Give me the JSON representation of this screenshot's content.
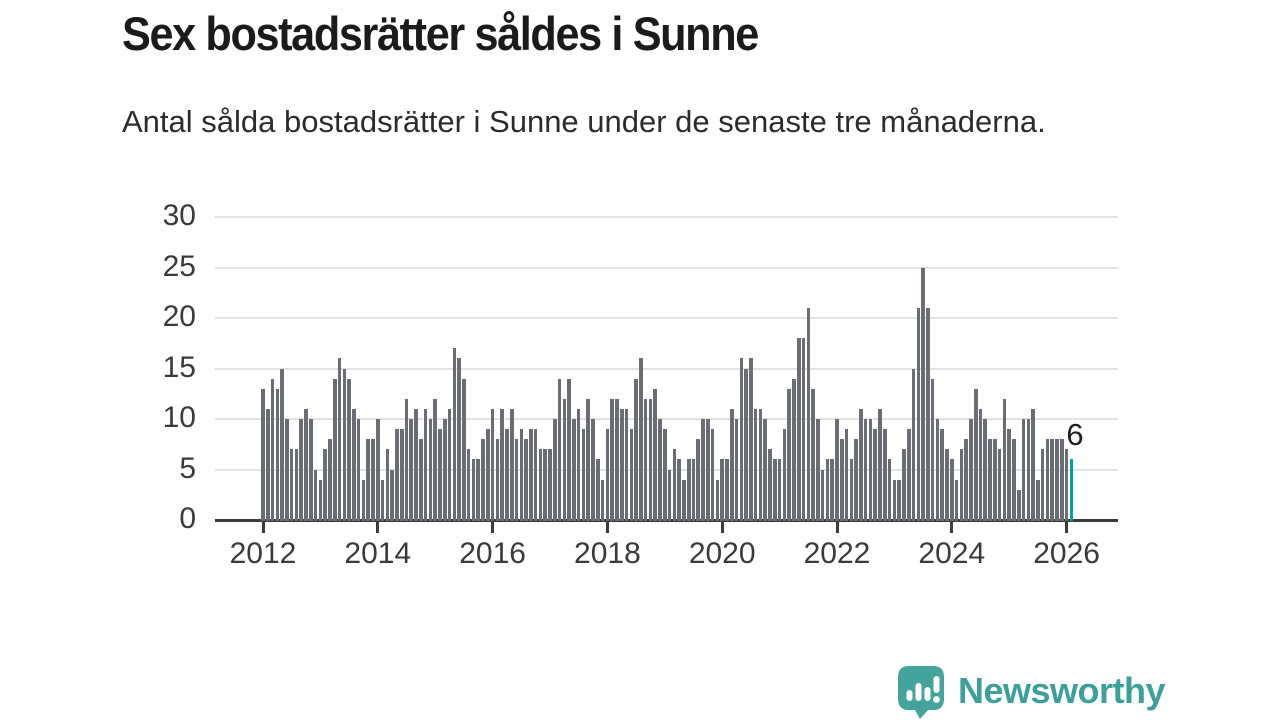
{
  "header": {
    "title": "Sex bostadsrätter såldes i Sunne",
    "subtitle": "Antal sålda bostadsrätter i Sunne under de senaste tre månaderna."
  },
  "chart_data": {
    "type": "bar",
    "title": "Sex bostadsrätter såldes i Sunne",
    "subtitle": "Antal sålda bostadsrätter i Sunne under de senaste tre månaderna.",
    "frequency": "monthly",
    "start_month": "2012-01",
    "end_month": "2026-02",
    "values": [
      13,
      11,
      14,
      13,
      15,
      10,
      7,
      7,
      10,
      11,
      10,
      5,
      4,
      7,
      8,
      14,
      16,
      15,
      14,
      11,
      10,
      4,
      8,
      8,
      10,
      4,
      7,
      5,
      9,
      9,
      12,
      10,
      11,
      8,
      11,
      10,
      12,
      9,
      10,
      11,
      17,
      16,
      14,
      7,
      6,
      6,
      8,
      9,
      11,
      8,
      11,
      9,
      11,
      8,
      9,
      8,
      9,
      9,
      7,
      7,
      7,
      10,
      14,
      12,
      14,
      10,
      11,
      9,
      12,
      10,
      6,
      4,
      9,
      12,
      12,
      11,
      11,
      9,
      14,
      16,
      12,
      12,
      13,
      10,
      9,
      5,
      7,
      6,
      4,
      6,
      6,
      8,
      10,
      10,
      9,
      4,
      6,
      6,
      11,
      10,
      16,
      15,
      16,
      11,
      11,
      10,
      7,
      6,
      6,
      9,
      13,
      14,
      18,
      18,
      21,
      13,
      10,
      5,
      6,
      6,
      10,
      8,
      9,
      6,
      8,
      11,
      10,
      10,
      9,
      11,
      9,
      6,
      4,
      4,
      7,
      9,
      15,
      21,
      25,
      21,
      14,
      10,
      9,
      7,
      6,
      4,
      7,
      8,
      10,
      13,
      11,
      10,
      8,
      8,
      7,
      12,
      9,
      8,
      3,
      10,
      10,
      11,
      4,
      7,
      8,
      8,
      8,
      8,
      7,
      6
    ],
    "last_bar_label": "6",
    "highlight_last_bar": true,
    "y_ticks": [
      0,
      5,
      10,
      15,
      20,
      25,
      30
    ],
    "ylim": [
      0,
      30
    ],
    "x_tick_years": [
      2012,
      2014,
      2016,
      2018,
      2020,
      2022,
      2024,
      2026
    ],
    "grid": true,
    "colors": {
      "bar": "#6a6d74",
      "highlight": "#00a39a",
      "grid": "#e2e2e2",
      "axis": "#3b3b3b",
      "tick_label": "#3a3a3a"
    }
  },
  "footer": {
    "brand": "Newsworthy",
    "brand_color": "#3aa099",
    "logo_icon": "bar-chart-speech-bubble"
  }
}
